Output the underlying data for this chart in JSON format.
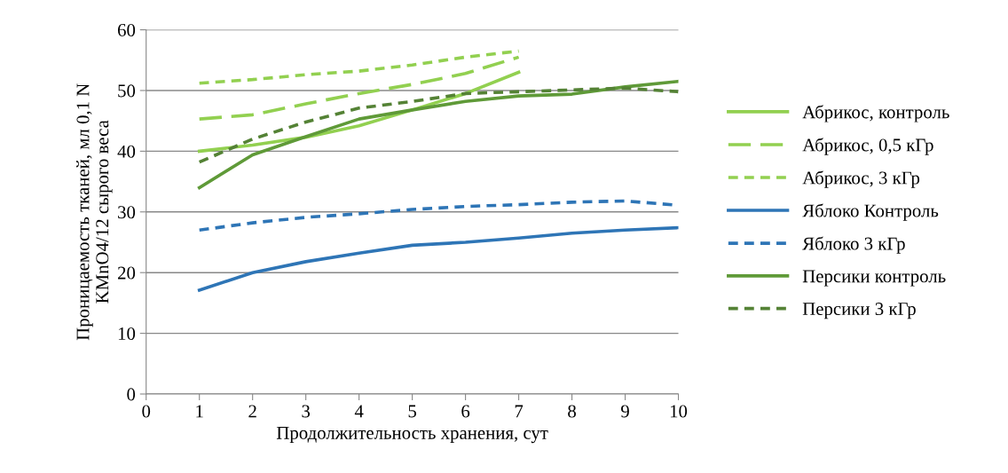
{
  "chart_data": {
    "type": "line",
    "xlabel": "Продолжительность хранения, сут",
    "ylabel": "Проницаемость тканей, мл 0,1 N\nKMnO4/12 сырого веса",
    "xlim": [
      0,
      10
    ],
    "xticks": [
      0,
      1,
      2,
      3,
      4,
      5,
      6,
      7,
      8,
      9,
      10
    ],
    "ylim": [
      0,
      60
    ],
    "yticks": [
      0,
      10,
      20,
      30,
      40,
      50,
      60
    ],
    "grid": "y",
    "legend": "right",
    "marker": "none",
    "series": [
      {
        "name": "Абрикос, контроль",
        "color": "#92d050",
        "line_style": "solid",
        "x": [
          1,
          2,
          3,
          4,
          5,
          6,
          7
        ],
        "values": [
          40,
          41,
          42.3,
          44.2,
          46.8,
          49.5,
          53
        ]
      },
      {
        "name": "Абрикос, 0,5 кГр",
        "color": "#92d050",
        "line_style": "long_dashed",
        "x": [
          1,
          2,
          3,
          4,
          5,
          6,
          7
        ],
        "values": [
          45.3,
          46,
          47.8,
          49.5,
          51,
          52.8,
          55.5
        ]
      },
      {
        "name": "Абрикос, 3 кГр",
        "color": "#92d050",
        "line_style": "dashed",
        "x": [
          1,
          2,
          3,
          4,
          5,
          6,
          7
        ],
        "values": [
          51.2,
          51.8,
          52.6,
          53.2,
          54.2,
          55.5,
          56.5
        ]
      },
      {
        "name": "Яблоко Контроль",
        "color": "#2e75b6",
        "line_style": "solid",
        "x": [
          1,
          2,
          3,
          4,
          5,
          6,
          7,
          8,
          9,
          10
        ],
        "values": [
          17.1,
          20,
          21.8,
          23.2,
          24.5,
          25,
          25.7,
          26.5,
          27,
          27.4
        ]
      },
      {
        "name": "Яблоко 3 кГр",
        "color": "#2e75b6",
        "line_style": "dashed",
        "x": [
          1,
          2,
          3,
          4,
          5,
          6,
          7,
          8,
          9,
          10
        ],
        "values": [
          27,
          28.2,
          29.1,
          29.7,
          30.4,
          30.9,
          31.2,
          31.6,
          31.8,
          31.1
        ]
      },
      {
        "name": "Персики контроль",
        "color": "#5f9a38",
        "line_style": "solid",
        "x": [
          1,
          2,
          3,
          4,
          5,
          6,
          7,
          8,
          9,
          10
        ],
        "values": [
          34,
          39.4,
          42.4,
          45.3,
          46.8,
          48.2,
          49.1,
          49.4,
          50.6,
          51.5
        ]
      },
      {
        "name": "Персики 3 кГр",
        "color": "#548235",
        "line_style": "dashed",
        "x": [
          1,
          2,
          3,
          4,
          5,
          6,
          7,
          8,
          9,
          10
        ],
        "values": [
          38.2,
          42,
          44.8,
          47.1,
          48.2,
          49.5,
          49.8,
          50.1,
          50.4,
          49.8
        ]
      }
    ]
  }
}
